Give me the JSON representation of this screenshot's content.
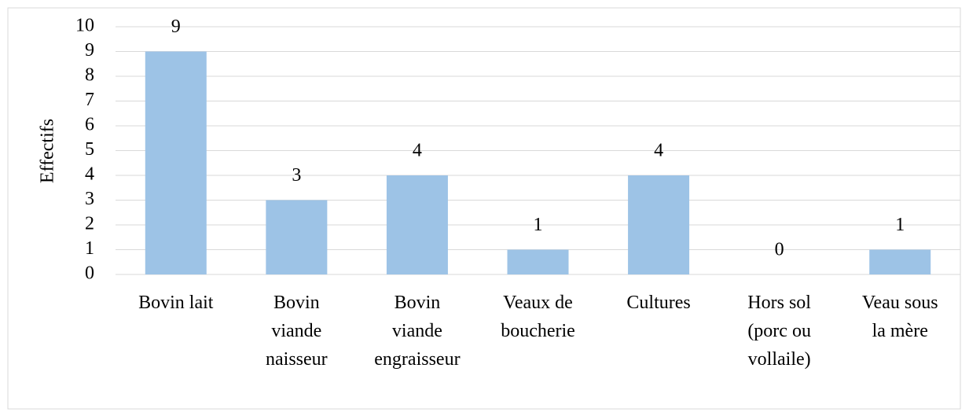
{
  "chart_data": {
    "type": "bar",
    "y_label": "Effectifs",
    "categories": [
      "Bovin lait",
      "Bovin viande naisseur",
      "Bovin viande engraisseur",
      "Veaux de boucherie",
      "Cultures",
      "Hors sol (porc ou vollaile)",
      "Veau sous la mère"
    ],
    "values": [
      9,
      3,
      4,
      1,
      4,
      0,
      1
    ],
    "color": "#9dc3e6",
    "ylim": [
      0,
      10
    ],
    "yticks": [
      0,
      1,
      2,
      3,
      4,
      5,
      6,
      7,
      8,
      9,
      10
    ],
    "grid": true
  }
}
